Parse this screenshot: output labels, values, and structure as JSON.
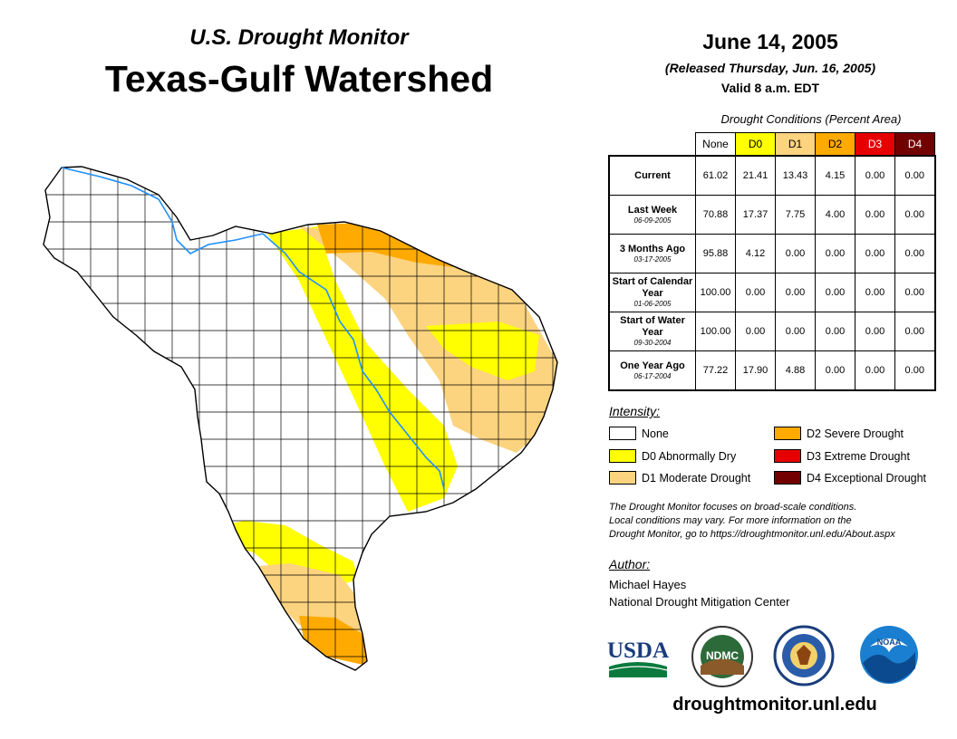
{
  "header": {
    "subtitle": "U.S. Drought Monitor",
    "title": "Texas-Gulf Watershed",
    "date": "June 14, 2005",
    "released": "(Released Thursday, Jun. 16, 2005)",
    "valid": "Valid 8 a.m. EDT"
  },
  "table": {
    "caption": "Drought Conditions (Percent Area)",
    "columns": [
      "None",
      "D0",
      "D1",
      "D2",
      "D3",
      "D4"
    ],
    "column_colors": [
      "#ffffff",
      "#ffff00",
      "#fcd37f",
      "#ffaa00",
      "#e60000",
      "#730000"
    ],
    "rows": [
      {
        "label": "Current",
        "date": "",
        "values": [
          "61.02",
          "21.41",
          "13.43",
          "4.15",
          "0.00",
          "0.00"
        ]
      },
      {
        "label": "Last Week",
        "date": "06-09-2005",
        "values": [
          "70.88",
          "17.37",
          "7.75",
          "4.00",
          "0.00",
          "0.00"
        ]
      },
      {
        "label": "3 Months Ago",
        "date": "03-17-2005",
        "values": [
          "95.88",
          "4.12",
          "0.00",
          "0.00",
          "0.00",
          "0.00"
        ]
      },
      {
        "label": "Start of Calendar Year",
        "date": "01-06-2005",
        "values": [
          "100.00",
          "0.00",
          "0.00",
          "0.00",
          "0.00",
          "0.00"
        ]
      },
      {
        "label": "Start of Water Year",
        "date": "09-30-2004",
        "values": [
          "100.00",
          "0.00",
          "0.00",
          "0.00",
          "0.00",
          "0.00"
        ]
      },
      {
        "label": "One Year Ago",
        "date": "06-17-2004",
        "values": [
          "77.22",
          "17.90",
          "4.88",
          "0.00",
          "0.00",
          "0.00"
        ]
      }
    ]
  },
  "legend": {
    "title": "Intensity:",
    "items": [
      {
        "label": "None",
        "color": "#ffffff"
      },
      {
        "label": "D0 Abnormally Dry",
        "color": "#ffff00"
      },
      {
        "label": "D1 Moderate Drought",
        "color": "#fcd37f"
      },
      {
        "label": "D2 Severe Drought",
        "color": "#ffaa00"
      },
      {
        "label": "D3 Extreme Drought",
        "color": "#e60000"
      },
      {
        "label": "D4 Exceptional Drought",
        "color": "#730000"
      }
    ]
  },
  "note": {
    "line1": "The Drought Monitor focuses on broad-scale conditions.",
    "line2": "Local conditions may vary. For more information on the",
    "line3": "Drought Monitor, go to https://droughtmonitor.unl.edu/About.aspx"
  },
  "author": {
    "title": "Author:",
    "name": "Michael Hayes",
    "org": "National Drought Mitigation Center"
  },
  "logos": {
    "usda": "USDA",
    "ndmc": "NDMC",
    "noaa": "NOAA"
  },
  "website": "droughtmonitor.unl.edu",
  "colors": {
    "river": "#1e90ff",
    "county_line": "#000000"
  }
}
